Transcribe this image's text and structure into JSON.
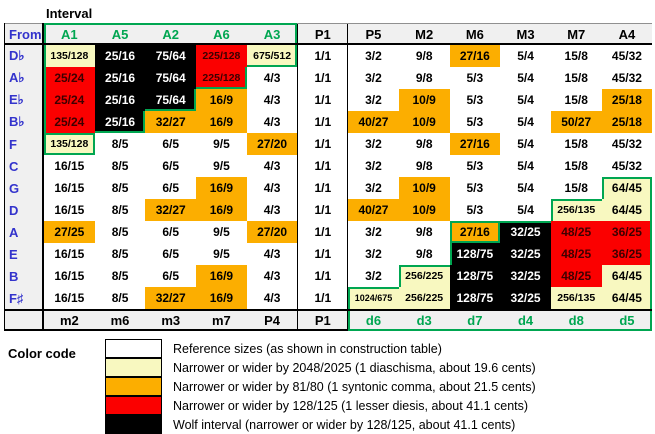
{
  "title": "Interval",
  "from_label": "From",
  "colors": {
    "white": "#FFFFFF",
    "pale_yellow": "#F8F8C0",
    "orange": "#FCAE00",
    "red": "#FB0000",
    "black": "#000000",
    "green": "#00A651",
    "row_label_blue": "#3333CC",
    "header_bg": "#F0F0F0",
    "red_cell_text": "#3C0000"
  },
  "table": {
    "top_headers": [
      "A1",
      "A5",
      "A2",
      "A6",
      "A3",
      "P1",
      "P5",
      "M2",
      "M6",
      "M3",
      "M7",
      "A4"
    ],
    "top_header_green_count": 5,
    "bottom_headers": [
      "m2",
      "m6",
      "m3",
      "m7",
      "P4",
      "P1",
      "d6",
      "d3",
      "d7",
      "d4",
      "d8",
      "d5"
    ],
    "bottom_header_green_start": 6,
    "rows": [
      {
        "label": "D♭",
        "cells": [
          {
            "v": "135/128",
            "c": "Y",
            "g": "l"
          },
          {
            "v": "25/16",
            "c": "K"
          },
          {
            "v": "75/64",
            "c": "K"
          },
          {
            "v": "225/128",
            "c": "R"
          },
          {
            "v": "675/512",
            "c": "Y",
            "g": "br"
          },
          {
            "v": "1/1",
            "c": "W"
          },
          {
            "v": "3/2",
            "c": "W"
          },
          {
            "v": "9/8",
            "c": "W"
          },
          {
            "v": "27/16",
            "c": "O"
          },
          {
            "v": "5/4",
            "c": "W"
          },
          {
            "v": "15/8",
            "c": "W"
          },
          {
            "v": "45/32",
            "c": "W"
          }
        ]
      },
      {
        "label": "A♭",
        "cells": [
          {
            "v": "25/24",
            "c": "R",
            "g": "l"
          },
          {
            "v": "25/16",
            "c": "K"
          },
          {
            "v": "75/64",
            "c": "K"
          },
          {
            "v": "225/128",
            "c": "R",
            "g": "br"
          },
          {
            "v": "4/3",
            "c": "W"
          },
          {
            "v": "1/1",
            "c": "W"
          },
          {
            "v": "3/2",
            "c": "W"
          },
          {
            "v": "9/8",
            "c": "W"
          },
          {
            "v": "5/3",
            "c": "W"
          },
          {
            "v": "5/4",
            "c": "W"
          },
          {
            "v": "15/8",
            "c": "W"
          },
          {
            "v": "45/32",
            "c": "W"
          }
        ]
      },
      {
        "label": "E♭",
        "cells": [
          {
            "v": "25/24",
            "c": "R",
            "g": "l"
          },
          {
            "v": "25/16",
            "c": "K"
          },
          {
            "v": "75/64",
            "c": "K",
            "g": "br"
          },
          {
            "v": "16/9",
            "c": "O"
          },
          {
            "v": "4/3",
            "c": "W"
          },
          {
            "v": "1/1",
            "c": "W"
          },
          {
            "v": "3/2",
            "c": "W"
          },
          {
            "v": "10/9",
            "c": "O"
          },
          {
            "v": "5/3",
            "c": "W"
          },
          {
            "v": "5/4",
            "c": "W"
          },
          {
            "v": "15/8",
            "c": "W"
          },
          {
            "v": "25/18",
            "c": "O"
          }
        ]
      },
      {
        "label": "B♭",
        "cells": [
          {
            "v": "25/24",
            "c": "R",
            "g": "l"
          },
          {
            "v": "25/16",
            "c": "K",
            "g": "br"
          },
          {
            "v": "32/27",
            "c": "O"
          },
          {
            "v": "16/9",
            "c": "O"
          },
          {
            "v": "4/3",
            "c": "W"
          },
          {
            "v": "1/1",
            "c": "W"
          },
          {
            "v": "40/27",
            "c": "O"
          },
          {
            "v": "10/9",
            "c": "O"
          },
          {
            "v": "5/3",
            "c": "W"
          },
          {
            "v": "5/4",
            "c": "W"
          },
          {
            "v": "50/27",
            "c": "O"
          },
          {
            "v": "25/18",
            "c": "O"
          }
        ]
      },
      {
        "label": "F",
        "cells": [
          {
            "v": "135/128",
            "c": "Y",
            "g": "tlbr"
          },
          {
            "v": "8/5",
            "c": "W"
          },
          {
            "v": "6/5",
            "c": "W"
          },
          {
            "v": "9/5",
            "c": "W"
          },
          {
            "v": "27/20",
            "c": "O"
          },
          {
            "v": "1/1",
            "c": "W"
          },
          {
            "v": "3/2",
            "c": "W"
          },
          {
            "v": "9/8",
            "c": "W"
          },
          {
            "v": "27/16",
            "c": "O"
          },
          {
            "v": "5/4",
            "c": "W"
          },
          {
            "v": "15/8",
            "c": "W"
          },
          {
            "v": "45/32",
            "c": "W"
          }
        ]
      },
      {
        "label": "C",
        "cells": [
          {
            "v": "16/15",
            "c": "W"
          },
          {
            "v": "8/5",
            "c": "W"
          },
          {
            "v": "6/5",
            "c": "W"
          },
          {
            "v": "9/5",
            "c": "W"
          },
          {
            "v": "4/3",
            "c": "W"
          },
          {
            "v": "1/1",
            "c": "W"
          },
          {
            "v": "3/2",
            "c": "W"
          },
          {
            "v": "9/8",
            "c": "W"
          },
          {
            "v": "5/3",
            "c": "W"
          },
          {
            "v": "5/4",
            "c": "W"
          },
          {
            "v": "15/8",
            "c": "W"
          },
          {
            "v": "45/32",
            "c": "W"
          }
        ]
      },
      {
        "label": "G",
        "cells": [
          {
            "v": "16/15",
            "c": "W"
          },
          {
            "v": "8/5",
            "c": "W"
          },
          {
            "v": "6/5",
            "c": "W"
          },
          {
            "v": "16/9",
            "c": "O"
          },
          {
            "v": "4/3",
            "c": "W"
          },
          {
            "v": "1/1",
            "c": "W"
          },
          {
            "v": "3/2",
            "c": "W"
          },
          {
            "v": "10/9",
            "c": "O"
          },
          {
            "v": "5/3",
            "c": "W"
          },
          {
            "v": "5/4",
            "c": "W"
          },
          {
            "v": "15/8",
            "c": "W"
          },
          {
            "v": "64/45",
            "c": "Y",
            "g": "tlr"
          }
        ]
      },
      {
        "label": "D",
        "cells": [
          {
            "v": "16/15",
            "c": "W"
          },
          {
            "v": "8/5",
            "c": "W"
          },
          {
            "v": "32/27",
            "c": "O"
          },
          {
            "v": "16/9",
            "c": "O"
          },
          {
            "v": "4/3",
            "c": "W"
          },
          {
            "v": "1/1",
            "c": "W"
          },
          {
            "v": "40/27",
            "c": "O"
          },
          {
            "v": "10/9",
            "c": "O"
          },
          {
            "v": "5/3",
            "c": "W"
          },
          {
            "v": "5/4",
            "c": "W"
          },
          {
            "v": "256/135",
            "c": "Y",
            "g": "tl"
          },
          {
            "v": "64/45",
            "c": "Y",
            "g": "r"
          }
        ]
      },
      {
        "label": "A",
        "cells": [
          {
            "v": "27/25",
            "c": "O"
          },
          {
            "v": "8/5",
            "c": "W"
          },
          {
            "v": "6/5",
            "c": "W"
          },
          {
            "v": "9/5",
            "c": "W"
          },
          {
            "v": "27/20",
            "c": "O"
          },
          {
            "v": "1/1",
            "c": "W"
          },
          {
            "v": "3/2",
            "c": "W"
          },
          {
            "v": "9/8",
            "c": "W"
          },
          {
            "v": "27/16",
            "c": "O",
            "g": "tlbr"
          },
          {
            "v": "32/25",
            "c": "K",
            "g": "t"
          },
          {
            "v": "48/25",
            "c": "R"
          },
          {
            "v": "36/25",
            "c": "R",
            "g": "r"
          }
        ]
      },
      {
        "label": "E",
        "cells": [
          {
            "v": "16/15",
            "c": "W"
          },
          {
            "v": "8/5",
            "c": "W"
          },
          {
            "v": "6/5",
            "c": "W"
          },
          {
            "v": "9/5",
            "c": "W"
          },
          {
            "v": "4/3",
            "c": "W"
          },
          {
            "v": "1/1",
            "c": "W"
          },
          {
            "v": "3/2",
            "c": "W"
          },
          {
            "v": "9/8",
            "c": "W"
          },
          {
            "v": "128/75",
            "c": "K",
            "g": "l"
          },
          {
            "v": "32/25",
            "c": "K"
          },
          {
            "v": "48/25",
            "c": "R"
          },
          {
            "v": "36/25",
            "c": "R",
            "g": "r"
          }
        ]
      },
      {
        "label": "B",
        "cells": [
          {
            "v": "16/15",
            "c": "W"
          },
          {
            "v": "8/5",
            "c": "W"
          },
          {
            "v": "6/5",
            "c": "W"
          },
          {
            "v": "16/9",
            "c": "O"
          },
          {
            "v": "4/3",
            "c": "W"
          },
          {
            "v": "1/1",
            "c": "W"
          },
          {
            "v": "3/2",
            "c": "W"
          },
          {
            "v": "256/225",
            "c": "Y",
            "g": "tl"
          },
          {
            "v": "128/75",
            "c": "K"
          },
          {
            "v": "32/25",
            "c": "K"
          },
          {
            "v": "48/25",
            "c": "R"
          },
          {
            "v": "64/45",
            "c": "Y",
            "g": "r"
          }
        ]
      },
      {
        "label": "F♯",
        "cells": [
          {
            "v": "16/15",
            "c": "W"
          },
          {
            "v": "8/5",
            "c": "W"
          },
          {
            "v": "32/27",
            "c": "O"
          },
          {
            "v": "16/9",
            "c": "O"
          },
          {
            "v": "4/3",
            "c": "W"
          },
          {
            "v": "1/1",
            "c": "W"
          },
          {
            "v": "1024/675",
            "c": "Y",
            "g": "tl"
          },
          {
            "v": "256/225",
            "c": "Y"
          },
          {
            "v": "128/75",
            "c": "K"
          },
          {
            "v": "32/25",
            "c": "K"
          },
          {
            "v": "256/135",
            "c": "Y"
          },
          {
            "v": "64/45",
            "c": "Y",
            "g": "r"
          }
        ]
      }
    ]
  },
  "legend": {
    "title": "Color code",
    "items": [
      {
        "color": "W",
        "text": "Reference sizes (as shown in construction table)"
      },
      {
        "color": "Y",
        "text": "Narrower or wider by 2048/2025 (1 diaschisma, about 19.6 cents)"
      },
      {
        "color": "O",
        "text": "Narrower or wider by 81/80 (1 syntonic comma, about 21.5 cents)"
      },
      {
        "color": "R",
        "text": "Narrower or wider by 128/125 (1 lesser diesis, about 41.1 cents)"
      },
      {
        "color": "K",
        "text": "Wolf interval (narrower or wider by 128/125, about 41.1 cents)"
      }
    ]
  }
}
